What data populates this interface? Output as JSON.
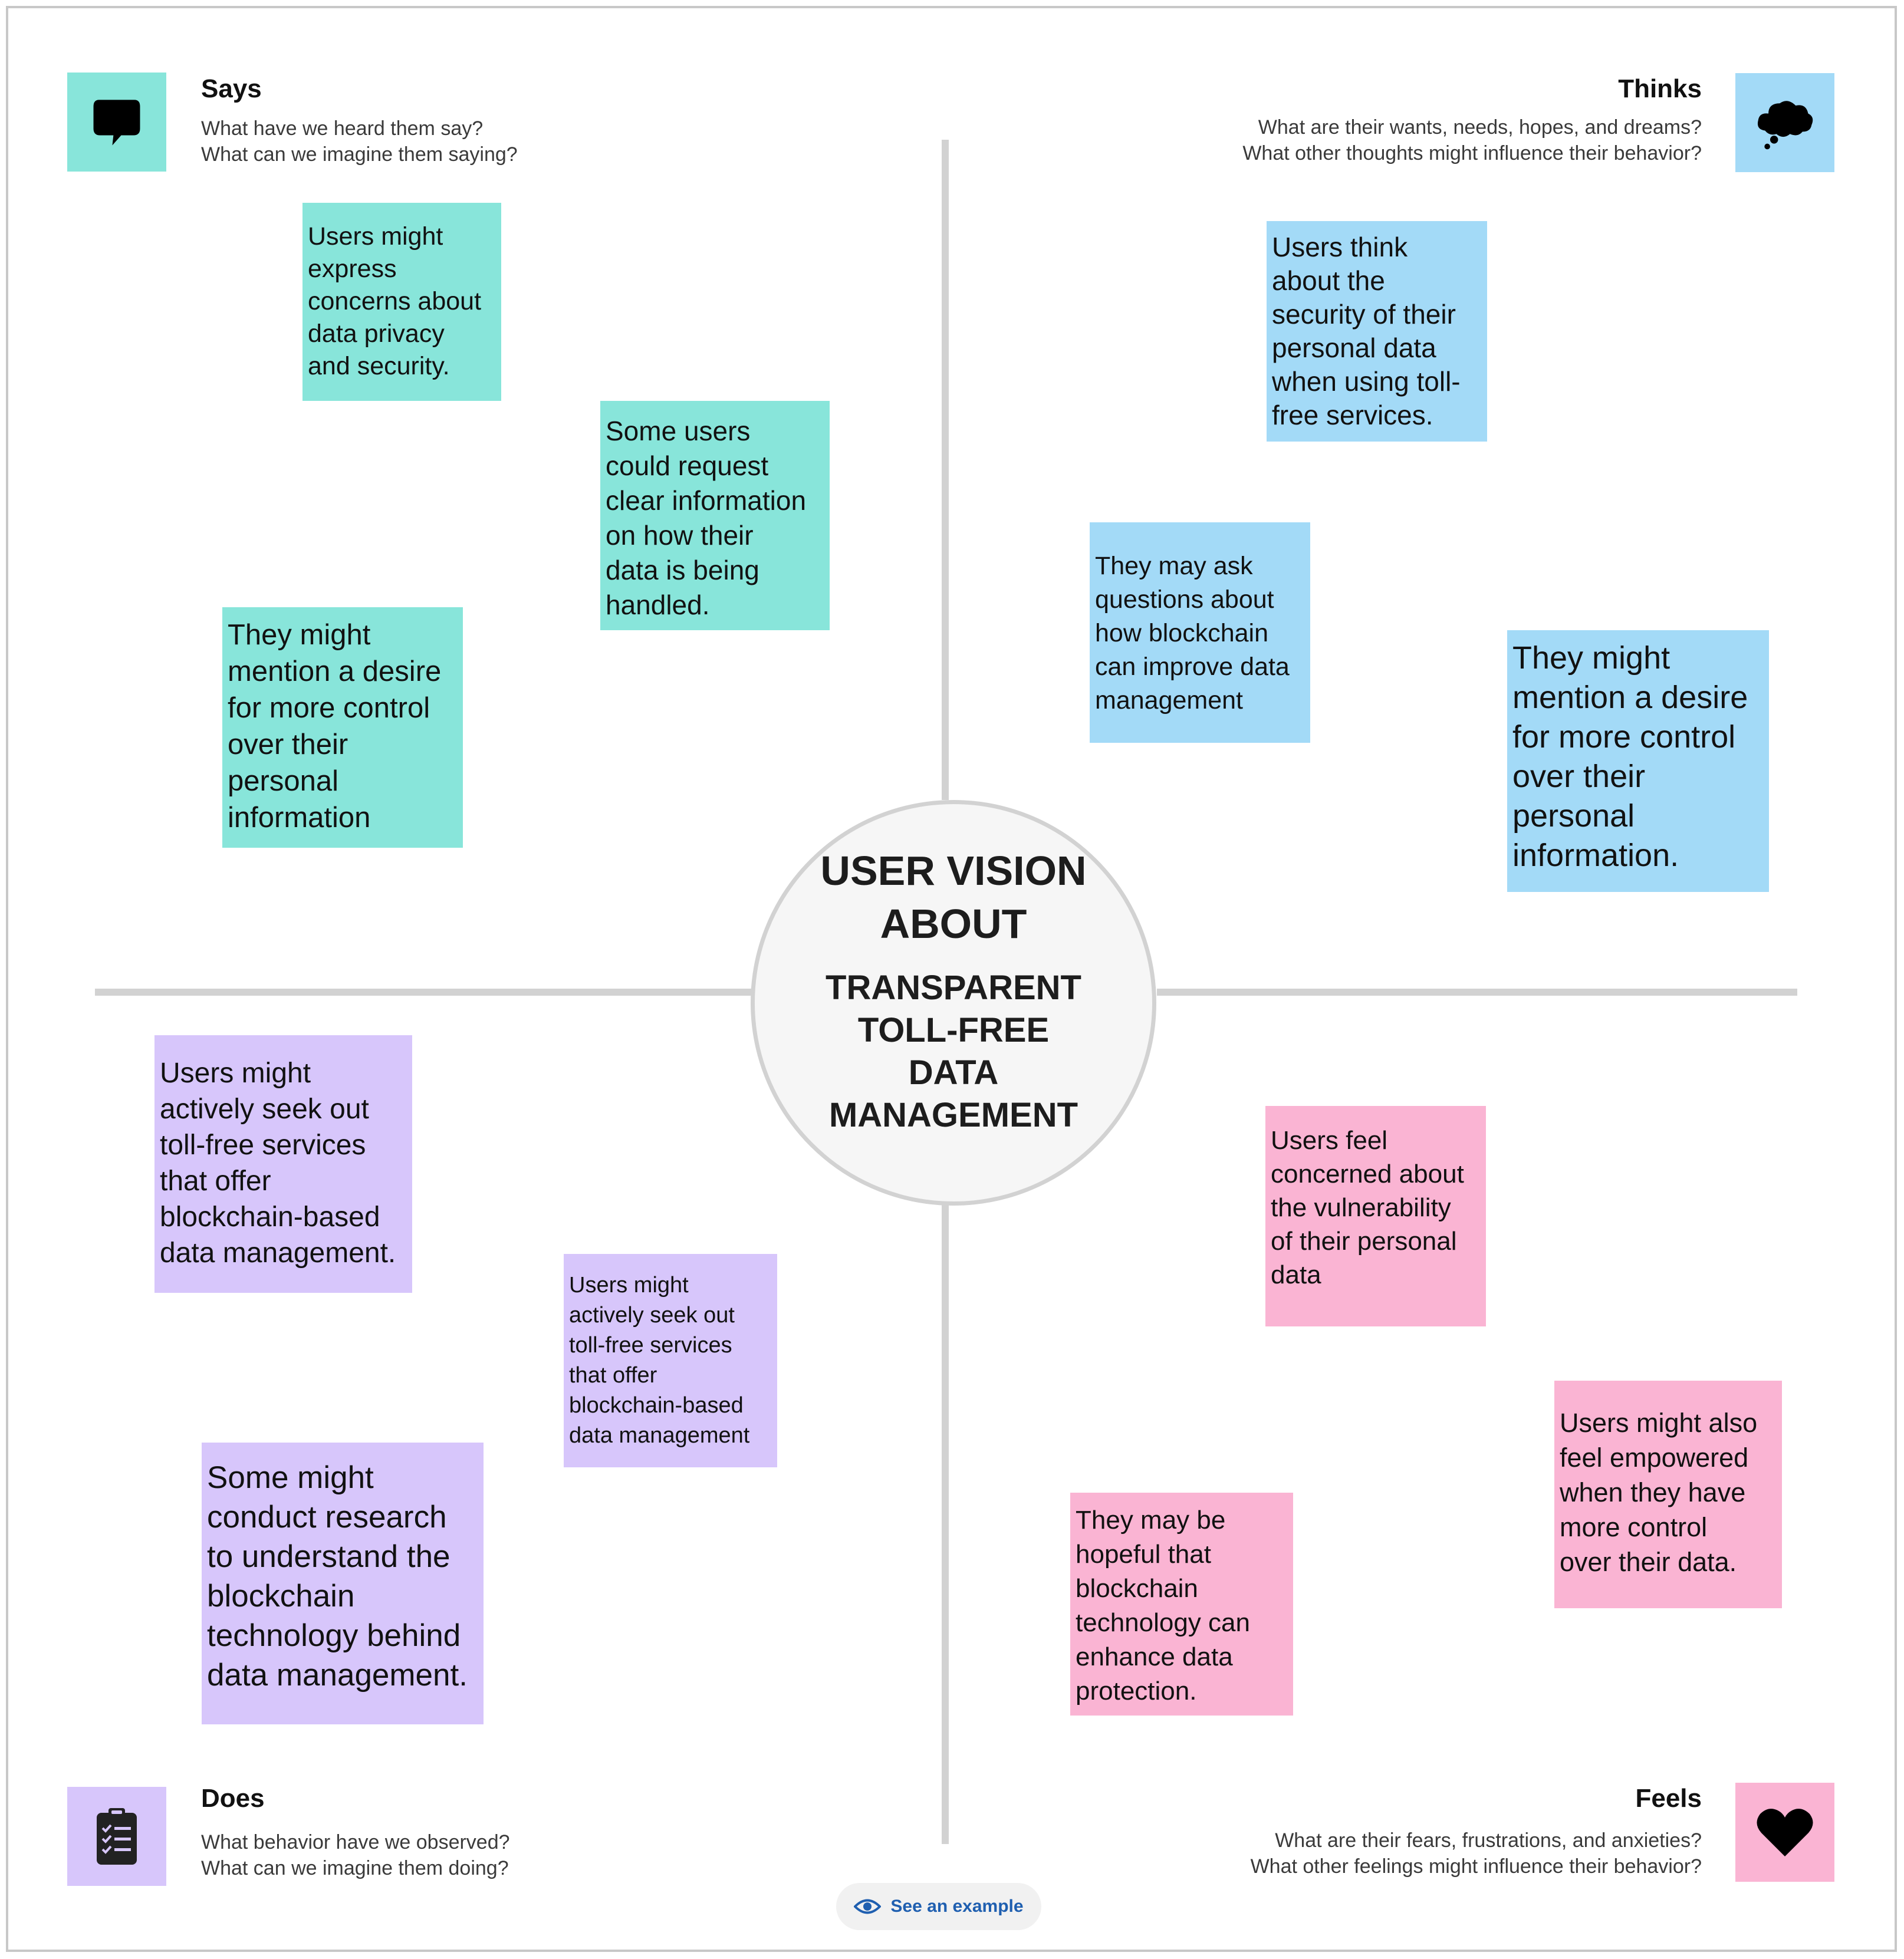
{
  "center": {
    "title": "USER VISION\nABOUT",
    "subtitle": "TRANSPARENT\nTOLL-FREE\nDATA\nMANAGEMENT"
  },
  "quadrants": {
    "says": {
      "title": "Says",
      "description": "What have we heard them say?\nWhat can we imagine them saying?",
      "icon": "speech-bubble-icon",
      "color": "#88e5da"
    },
    "thinks": {
      "title": "Thinks",
      "description": "What are their wants, needs, hopes, and dreams?\nWhat other thoughts might influence their behavior?",
      "icon": "thought-cloud-icon",
      "color": "#a3daf7"
    },
    "does": {
      "title": "Does",
      "description": "What behavior have we observed?\nWhat can we imagine them doing?",
      "icon": "clipboard-checklist-icon",
      "color": "#d7c6fb"
    },
    "feels": {
      "title": "Feels",
      "description": "What are their fears, frustrations, and anxieties?\nWhat other feelings might influence their behavior?",
      "icon": "heart-icon",
      "color": "#fab4d3"
    }
  },
  "notes": {
    "says": [
      "Users might\nexpress\nconcerns about\ndata privacy\nand security.",
      "Some users\ncould request\nclear information\non how their\ndata is being\nhandled.",
      "They might\nmention a desire\nfor more control\nover their\npersonal\ninformation"
    ],
    "thinks": [
      " Users think\nabout the\nsecurity of their\npersonal data\nwhen using toll-\nfree services.",
      "They may ask\nquestions about\nhow blockchain\ncan improve data\nmanagement",
      "They might\nmention a desire\nfor more control\nover their\npersonal\ninformation."
    ],
    "does": [
      "Users might\nactively seek out\ntoll-free services\nthat offer\nblockchain-based\ndata management.",
      "Users might\nactively seek out\ntoll-free services\nthat offer\nblockchain-based\ndata management",
      "Some might\nconduct research\nto understand the\nblockchain\ntechnology behind\ndata management."
    ],
    "feels": [
      " Users feel\nconcerned about\nthe vulnerability\nof their personal\ndata",
      "Users might also\nfeel empowered\nwhen they have\nmore control\nover their data.",
      "They may be\nhopeful that\nblockchain\ntechnology can\nenhance data\nprotection."
    ]
  },
  "example_button": {
    "label": "See an example",
    "icon": "eye-icon"
  }
}
